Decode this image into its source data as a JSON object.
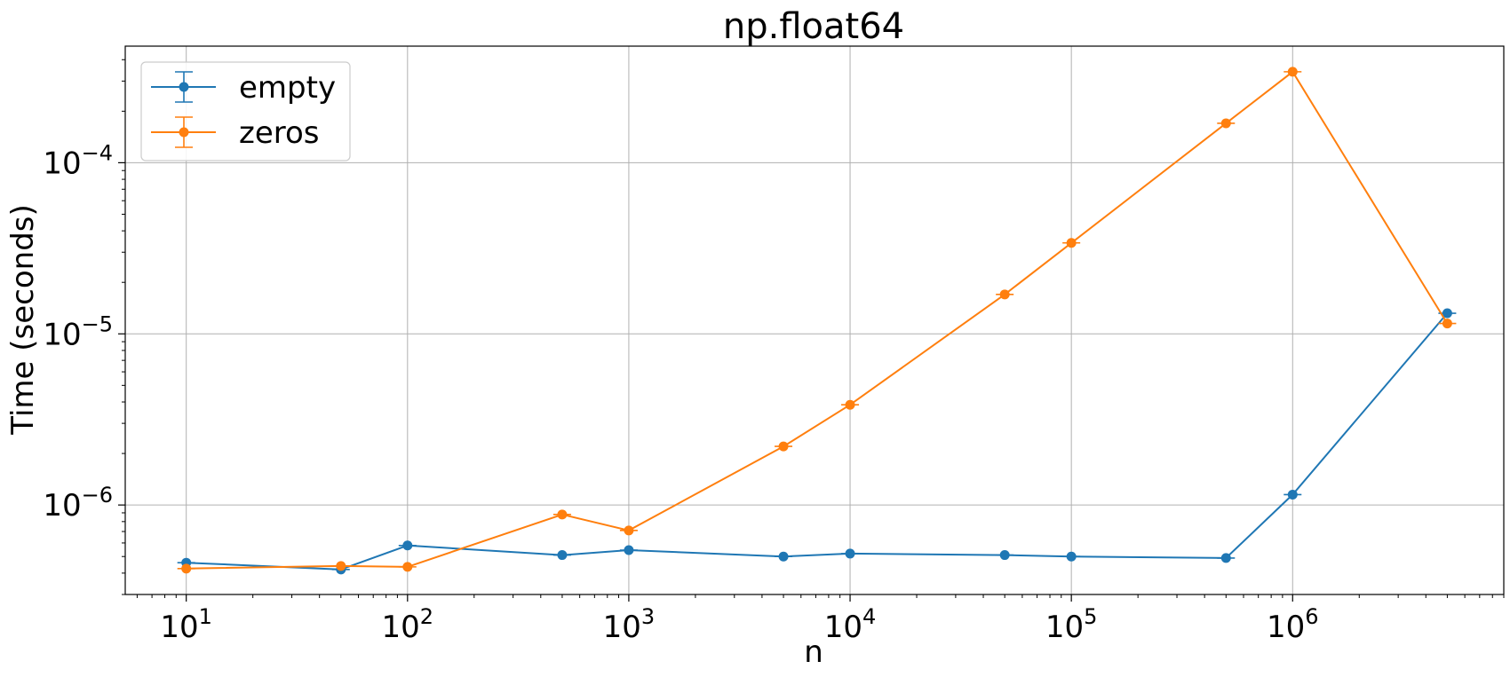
{
  "chart_data": {
    "type": "line",
    "title": "np.float64",
    "xlabel": "n",
    "ylabel": "Time (seconds)",
    "xscale": "log",
    "yscale": "log",
    "xlim": [
      5.3,
      9000000
    ],
    "ylim": [
      3e-07,
      0.00048
    ],
    "xticks": [
      {
        "base": "10",
        "exp": "1",
        "value": 10
      },
      {
        "base": "10",
        "exp": "2",
        "value": 100
      },
      {
        "base": "10",
        "exp": "3",
        "value": 1000
      },
      {
        "base": "10",
        "exp": "4",
        "value": 10000
      },
      {
        "base": "10",
        "exp": "5",
        "value": 100000
      },
      {
        "base": "10",
        "exp": "6",
        "value": 1000000
      }
    ],
    "yticks": [
      {
        "base": "10",
        "exp": "−6",
        "value": 1e-06
      },
      {
        "base": "10",
        "exp": "−5",
        "value": 1e-05
      },
      {
        "base": "10",
        "exp": "−4",
        "value": 0.0001
      }
    ],
    "grid": true,
    "legend_position": "top-left",
    "x": [
      10,
      50,
      100,
      500,
      1000,
      5000,
      10000,
      50000,
      100000,
      500000,
      1000000,
      5000000
    ],
    "series": [
      {
        "name": "empty",
        "color": "#1f77b4",
        "values": [
          4.6e-07,
          4.2e-07,
          5.8e-07,
          5.1e-07,
          5.45e-07,
          5e-07,
          5.2e-07,
          5.1e-07,
          5e-07,
          4.9e-07,
          1.15e-06,
          1.32e-05
        ]
      },
      {
        "name": "zeros",
        "color": "#ff7f0e",
        "values": [
          4.25e-07,
          4.4e-07,
          4.35e-07,
          8.8e-07,
          7.1e-07,
          2.2e-06,
          3.85e-06,
          1.7e-05,
          3.4e-05,
          0.00017,
          0.00034,
          1.15e-05
        ]
      }
    ]
  }
}
